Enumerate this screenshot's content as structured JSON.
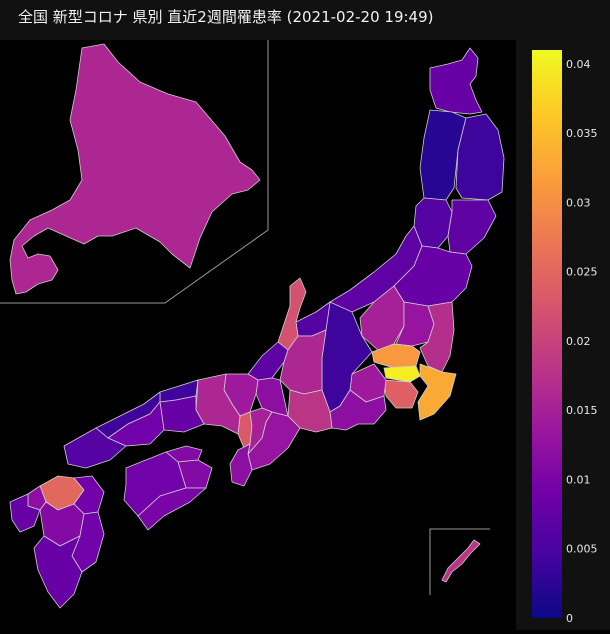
{
  "title": "全国 新型コロナ 県別 直近2週間罹患率 (2021-02-20 19:49)",
  "colorbar": {
    "min": 0,
    "max": 0.041,
    "ticks": [
      "0",
      "0.005",
      "0.01",
      "0.015",
      "0.02",
      "0.025",
      "0.03",
      "0.035",
      "0.04"
    ],
    "tick_values": [
      0,
      0.005,
      0.01,
      0.015,
      0.02,
      0.025,
      0.03,
      0.035,
      0.04
    ],
    "colors": [
      "#0d0887",
      "#46039f",
      "#7201a8",
      "#9c179e",
      "#bd3786",
      "#d8576b",
      "#ed7953",
      "#fb9f3a",
      "#fdca26",
      "#f0f921"
    ]
  },
  "chart_data": {
    "type": "choropleth",
    "metric": "直近2週間罹患率",
    "regions": [
      {
        "name": "Hokkaido",
        "value": 0.016
      },
      {
        "name": "Aomori",
        "value": 0.008
      },
      {
        "name": "Akita",
        "value": 0.002
      },
      {
        "name": "Iwate",
        "value": 0.004
      },
      {
        "name": "Yamagata",
        "value": 0.006
      },
      {
        "name": "Miyagi",
        "value": 0.007
      },
      {
        "name": "Niigata",
        "value": 0.007
      },
      {
        "name": "Fukushima",
        "value": 0.008
      },
      {
        "name": "Tochigi",
        "value": 0.013
      },
      {
        "name": "Gunma",
        "value": 0.015
      },
      {
        "name": "Ibaraki",
        "value": 0.017
      },
      {
        "name": "Saitama",
        "value": 0.031
      },
      {
        "name": "Tokyo",
        "value": 0.04
      },
      {
        "name": "Chiba",
        "value": 0.033
      },
      {
        "name": "Kanagawa",
        "value": 0.024
      },
      {
        "name": "Yamanashi",
        "value": 0.014
      },
      {
        "name": "Nagano",
        "value": 0.004
      },
      {
        "name": "Shizuoka",
        "value": 0.012
      },
      {
        "name": "Toyama",
        "value": 0.006
      },
      {
        "name": "Ishikawa",
        "value": 0.022
      },
      {
        "name": "Fukui",
        "value": 0.007
      },
      {
        "name": "Gifu",
        "value": 0.016
      },
      {
        "name": "Aichi",
        "value": 0.018
      },
      {
        "name": "Mie",
        "value": 0.013
      },
      {
        "name": "Shiga",
        "value": 0.012
      },
      {
        "name": "Kyoto",
        "value": 0.014
      },
      {
        "name": "Osaka",
        "value": 0.023
      },
      {
        "name": "Hyogo",
        "value": 0.016
      },
      {
        "name": "Nara",
        "value": 0.015
      },
      {
        "name": "Wakayama",
        "value": 0.012
      },
      {
        "name": "Tottori",
        "value": 0.004
      },
      {
        "name": "Shimane",
        "value": 0.004
      },
      {
        "name": "Okayama",
        "value": 0.008
      },
      {
        "name": "Hiroshima",
        "value": 0.009
      },
      {
        "name": "Yamaguchi",
        "value": 0.006
      },
      {
        "name": "Tokushima",
        "value": 0.011
      },
      {
        "name": "Kagawa",
        "value": 0.011
      },
      {
        "name": "Ehime",
        "value": 0.009
      },
      {
        "name": "Kochi",
        "value": 0.01
      },
      {
        "name": "Fukuoka",
        "value": 0.025
      },
      {
        "name": "Saga",
        "value": 0.012
      },
      {
        "name": "Nagasaki",
        "value": 0.008
      },
      {
        "name": "Kumamoto",
        "value": 0.011
      },
      {
        "name": "Oita",
        "value": 0.009
      },
      {
        "name": "Miyazaki",
        "value": 0.009
      },
      {
        "name": "Kagoshima",
        "value": 0.008
      },
      {
        "name": "Okinawa",
        "value": 0.018
      }
    ]
  }
}
